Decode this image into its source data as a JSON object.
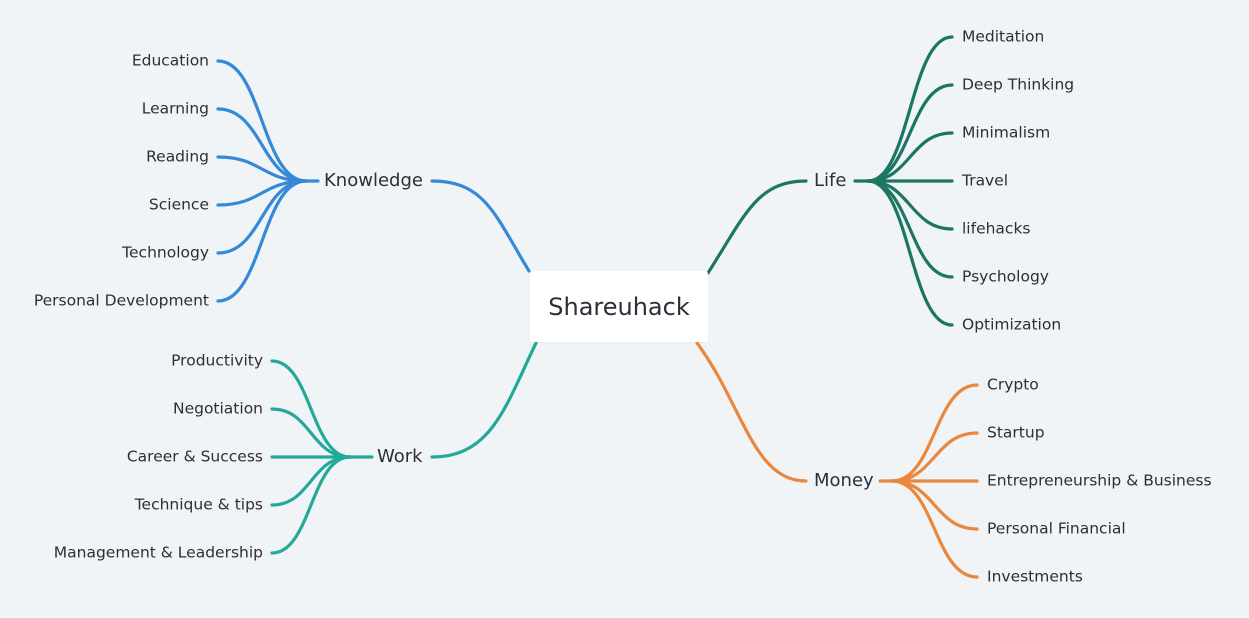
{
  "root": {
    "label": "Shareuhack"
  },
  "colors": {
    "knowledge": "#3589d6",
    "work": "#22a99a",
    "life": "#1d7563",
    "money": "#e9873d"
  },
  "branches": {
    "knowledge": {
      "label": "Knowledge",
      "items": [
        "Education",
        "Learning",
        "Reading",
        "Science",
        "Technology",
        "Personal Development"
      ]
    },
    "work": {
      "label": "Work",
      "items": [
        "Productivity",
        "Negotiation",
        "Career & Success",
        "Technique & tips",
        "Management & Leadership"
      ]
    },
    "life": {
      "label": "Life",
      "items": [
        "Meditation",
        "Deep Thinking",
        "Minimalism",
        "Travel",
        "lifehacks",
        "Psychology",
        "Optimization"
      ]
    },
    "money": {
      "label": "Money",
      "items": [
        "Crypto",
        "Startup",
        "Entrepreneurship & Business",
        "Personal Financial",
        "Investments"
      ]
    }
  }
}
